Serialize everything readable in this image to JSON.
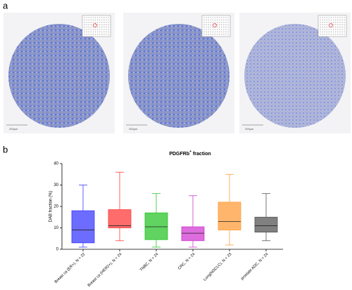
{
  "panel_a": {
    "label": "a",
    "images": [
      {
        "scale_label": "200µm"
      },
      {
        "scale_label": "200µm"
      },
      {
        "scale_label": "200µm"
      }
    ]
  },
  "chart_data": {
    "type": "box",
    "panel_label": "b",
    "title": "PDGFRb",
    "title_superscript": "+",
    "title_rest": " fraction",
    "y_label": "DAB fraction (%)",
    "categories": [
      "Breast ca (ER+), N = 22",
      "Breast ca (HER2+), N = 24",
      "TNBC, N = 24",
      "CRC, N = 24",
      "Lung(NSCLC), N = 23",
      "prostate ADC, N = 24"
    ],
    "series": [
      {
        "color": "#3b3bff",
        "min": 1,
        "q1": 3,
        "median": 9,
        "q3": 18,
        "max": 30
      },
      {
        "color": "#ff3b3b",
        "min": 4,
        "q1": 10,
        "median": 11,
        "q3": 18.5,
        "max": 36
      },
      {
        "color": "#2bc42b",
        "min": 1,
        "q1": 4.5,
        "median": 10.5,
        "q3": 17,
        "max": 26
      },
      {
        "color": "#d13bd1",
        "min": 1,
        "q1": 4,
        "median": 7.5,
        "q3": 10.5,
        "max": 25
      },
      {
        "color": "#ff9d3b",
        "min": 2,
        "q1": 9,
        "median": 13,
        "q3": 22,
        "max": 35
      },
      {
        "color": "#555555",
        "min": 4,
        "q1": 8,
        "median": 11,
        "q3": 15,
        "max": 26
      }
    ],
    "ylim": [
      0,
      40
    ],
    "yticks": [
      0,
      10,
      20,
      30,
      40
    ]
  }
}
